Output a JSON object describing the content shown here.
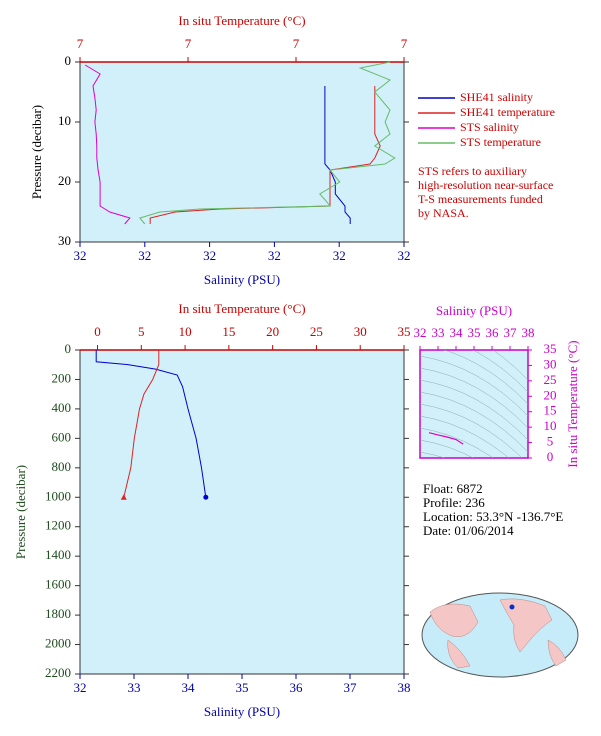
{
  "chart_data": [
    {
      "type": "profile",
      "temperature_label": "In situ Temperature (°C)",
      "salinity_label": "Salinity (PSU)",
      "y_label": "Pressure (decibar)",
      "temperature_color": "#cc0000",
      "salinity_color": "#0000aa",
      "pressure_color": "#000000",
      "temperature_lim": [
        6.7,
        7.3
      ],
      "temperature_ticks": [
        {
          "value": 6.7,
          "label": "7"
        },
        {
          "value": 6.9,
          "label": "7"
        },
        {
          "value": 7.1,
          "label": "7"
        },
        {
          "value": 7.3,
          "label": "7"
        }
      ],
      "salinity_lim": [
        31.75,
        32.25
      ],
      "salinity_ticks": [
        {
          "value": 31.75,
          "label": "32"
        },
        {
          "value": 31.85,
          "label": "32"
        },
        {
          "value": 31.95,
          "label": "32"
        },
        {
          "value": 32.05,
          "label": "32"
        },
        {
          "value": 32.15,
          "label": "32"
        },
        {
          "value": 32.25,
          "label": "32"
        }
      ],
      "ylim": [
        0,
        30
      ],
      "yticks": [
        0,
        10,
        20,
        30
      ],
      "series": [
        {
          "name": "SHE41 salinity",
          "color": "#0000cc",
          "axis": "salinity",
          "pressure": [
            4,
            6,
            8,
            10,
            12,
            14,
            16,
            17,
            18,
            20,
            22,
            24,
            25,
            26,
            27
          ],
          "values": [
            32.128,
            32.128,
            32.128,
            32.128,
            32.128,
            32.128,
            32.128,
            32.128,
            32.136,
            32.144,
            32.144,
            32.159,
            32.159,
            32.167,
            32.167
          ]
        },
        {
          "name": "SHE41 temperature",
          "color": "#dd2222",
          "axis": "temperature",
          "pressure": [
            4,
            6,
            8,
            10,
            12,
            14,
            16,
            17,
            18,
            20,
            22,
            24,
            24.5,
            25,
            26,
            27
          ],
          "values": [
            7.246,
            7.246,
            7.246,
            7.246,
            7.246,
            7.256,
            7.246,
            7.237,
            7.163,
            7.163,
            7.163,
            7.163,
            6.959,
            6.876,
            6.83,
            6.83
          ]
        },
        {
          "name": "STS salinity",
          "color": "#dd00cc",
          "axis": "salinity",
          "pressure": [
            0.5,
            2,
            4,
            6,
            8,
            10,
            12,
            14,
            16,
            18,
            20,
            22,
            24,
            25,
            26,
            27
          ],
          "values": [
            31.758,
            31.781,
            31.77,
            31.773,
            31.775,
            31.773,
            31.775,
            31.776,
            31.776,
            31.778,
            31.781,
            31.781,
            31.781,
            31.796,
            31.827,
            31.819
          ]
        },
        {
          "name": "STS temperature",
          "color": "#66bb66",
          "axis": "temperature",
          "pressure": [
            0,
            1,
            3,
            5,
            8,
            10,
            12,
            14,
            16,
            17,
            18,
            20,
            22,
            23,
            24,
            24.5,
            25,
            26,
            27
          ],
          "values": [
            7.274,
            7.219,
            7.274,
            7.246,
            7.274,
            7.265,
            7.274,
            7.246,
            7.283,
            7.265,
            7.163,
            7.181,
            7.144,
            7.154,
            7.163,
            6.922,
            6.848,
            6.811,
            6.82
          ]
        }
      ],
      "note": [
        "STS refers to auxiliary",
        "high-resolution near-surface",
        "T-S measurements funded",
        "by NASA."
      ]
    },
    {
      "type": "profile",
      "temperature_label": "In situ Temperature (°C)",
      "salinity_label": "Salinity (PSU)",
      "y_label": "Pressure (decibar)",
      "temperature_color": "#cc0000",
      "salinity_color": "#0000aa",
      "pressure_color": "#1e4d1e",
      "temperature_lim": [
        -2,
        35
      ],
      "temperature_ticks": [
        0,
        5,
        10,
        15,
        20,
        25,
        30,
        35
      ],
      "salinity_lim": [
        32,
        38
      ],
      "salinity_ticks": [
        32,
        33,
        34,
        35,
        36,
        37,
        38
      ],
      "ylim": [
        0,
        2200
      ],
      "yticks": [
        0,
        200,
        400,
        600,
        800,
        1000,
        1200,
        1400,
        1600,
        1800,
        2000,
        2200
      ],
      "series": [
        {
          "color": "#0000cc",
          "axis": "salinity",
          "end_marker": "circle",
          "pressure": [
            0,
            80,
            100,
            130,
            170,
            250,
            400,
            600,
            800,
            1000
          ],
          "values": [
            32.3,
            32.3,
            32.9,
            33.4,
            33.8,
            33.9,
            34.0,
            34.15,
            34.25,
            34.33
          ]
        },
        {
          "color": "#dd2222",
          "axis": "temperature",
          "end_marker": "triangle",
          "pressure": [
            0,
            100,
            200,
            300,
            400,
            600,
            800,
            1000
          ],
          "values": [
            7.0,
            7.0,
            6.3,
            5.3,
            4.8,
            4.2,
            3.8,
            3.0
          ]
        }
      ]
    },
    {
      "type": "ts",
      "xlabel": "Salinity (PSU)",
      "ylabel": "In situ Temperature (°C)",
      "axis_color": "#cc00cc",
      "xlim": [
        32,
        38
      ],
      "xticks": [
        32,
        33,
        34,
        35,
        36,
        37,
        38
      ],
      "ylim": [
        0,
        35
      ],
      "yticks": [
        0,
        5,
        10,
        15,
        20,
        25,
        30,
        35
      ],
      "series": [
        {
          "color": "#dd00cc",
          "x": [
            32.5,
            33.0,
            33.5,
            34.0,
            34.4
          ],
          "values": [
            8.2,
            7.5,
            6.8,
            6.0,
            4.5
          ]
        }
      ]
    }
  ],
  "float_info": [
    "Float:  6872",
    "Profile:  236",
    "Location:  53.3°N  -136.7°E",
    "Date:  01/06/2014"
  ]
}
